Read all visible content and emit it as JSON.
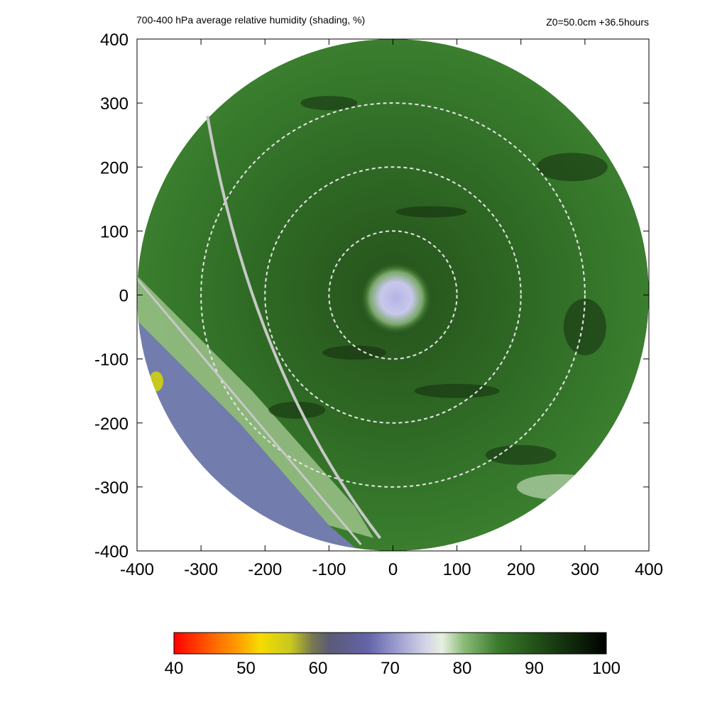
{
  "chart_data": {
    "type": "heatmap",
    "title": "700-400 hPa average relative humidity (shading, %)",
    "subtitle": "Z0=50.0cm  +36.5hours",
    "xlim": [
      -400,
      400
    ],
    "ylim": [
      -400,
      400
    ],
    "x_ticks": [
      "-400",
      "-300",
      "-200",
      "-100",
      "0",
      "100",
      "200",
      "300",
      "400"
    ],
    "y_ticks": [
      "400",
      "300",
      "200",
      "100",
      "0",
      "-100",
      "-200",
      "-300",
      "-400"
    ],
    "domain_radius": 400,
    "range_rings": [
      100,
      200,
      300
    ],
    "colorbar": {
      "min": 40,
      "max": 100,
      "ticks": [
        "40",
        "50",
        "60",
        "70",
        "80",
        "90",
        "100"
      ]
    }
  },
  "colors": {
    "ring": "#e6e6e6",
    "path": "#c8c8c8",
    "frame": "#000000"
  }
}
